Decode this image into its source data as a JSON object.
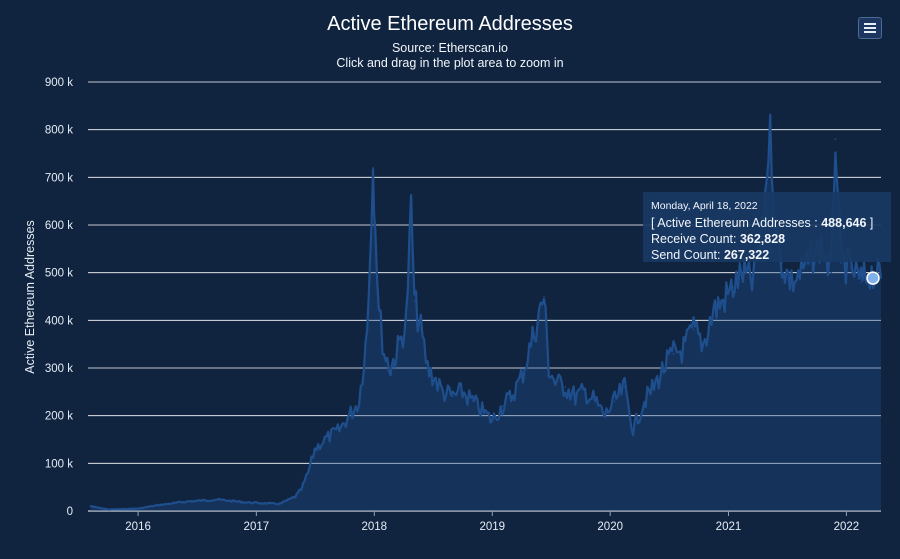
{
  "header": {
    "title": "Active Ethereum Addresses",
    "source": "Source: Etherscan.io",
    "hint": "Click and drag in the plot area to zoom in",
    "menu_icon": "hamburger-menu-icon"
  },
  "colors": {
    "background": "#102440",
    "series": "#1f4e8c",
    "gridline": "#ffffff",
    "marker": "#7fb2ec"
  },
  "tooltip": {
    "date": "Monday, April 18, 2022",
    "series_open": "[ Active Ethereum Addresses : ",
    "series_value": "488,646",
    "series_close": " ]",
    "receive_label": "Receive Count: ",
    "receive_value": "362,828",
    "send_label": "Send Count: ",
    "send_value": "267,322"
  },
  "chart_data": {
    "type": "area",
    "title": "Active Ethereum Addresses",
    "subtitle": "Source: Etherscan.io",
    "xlabel": "",
    "ylabel": "Active Ethereum Addresses",
    "y_ticks": [
      "0",
      "100 k",
      "200 k",
      "300 k",
      "400 k",
      "500 k",
      "600 k",
      "700 k",
      "800 k",
      "900 k"
    ],
    "x_ticks": [
      "2016",
      "2017",
      "2018",
      "2019",
      "2020",
      "2021",
      "2022"
    ],
    "ylim": [
      0,
      900000
    ],
    "xlim": [
      "2015-07-30",
      "2022-04-18"
    ],
    "grid": "horizontal",
    "legend": "none",
    "series": [
      {
        "x": [
          "2015-08-07",
          "2015-10-01",
          "2016-01-01",
          "2016-03-01",
          "2016-06-01",
          "2016-09-01",
          "2016-12-01",
          "2017-02-01",
          "2017-03-15",
          "2017-05-01",
          "2017-05-20",
          "2017-06-10",
          "2017-07-01",
          "2017-08-01",
          "2017-09-15",
          "2017-10-15",
          "2017-11-15",
          "2017-12-10",
          "2017-12-28",
          "2018-01-04",
          "2018-01-15",
          "2018-02-01",
          "2018-02-20",
          "2018-03-15",
          "2018-04-10",
          "2018-04-25",
          "2018-05-05",
          "2018-05-25",
          "2018-06-15",
          "2018-07-05",
          "2018-08-01",
          "2018-09-01",
          "2018-10-01",
          "2018-11-01",
          "2018-12-01",
          "2019-01-01",
          "2019-02-01",
          "2019-03-01",
          "2019-04-01",
          "2019-05-01",
          "2019-06-10",
          "2019-06-25",
          "2019-07-15",
          "2019-08-15",
          "2019-09-15",
          "2019-10-15",
          "2019-11-15",
          "2019-12-15",
          "2020-01-15",
          "2020-02-15",
          "2020-03-12",
          "2020-04-15",
          "2020-05-15",
          "2020-06-15",
          "2020-07-15",
          "2020-08-15",
          "2020-09-15",
          "2020-10-15",
          "2020-11-15",
          "2020-12-15",
          "2021-01-15",
          "2021-02-15",
          "2021-03-15",
          "2021-04-15",
          "2021-05-10",
          "2021-05-25",
          "2021-06-15",
          "2021-07-15",
          "2021-08-15",
          "2021-09-15",
          "2021-10-15",
          "2021-11-15",
          "2021-11-28",
          "2021-12-15",
          "2022-01-15",
          "2022-02-15",
          "2022-03-15",
          "2022-04-18"
        ],
        "values": [
          10000,
          3000,
          5000,
          12000,
          20000,
          24000,
          18000,
          16000,
          15000,
          30000,
          45000,
          80000,
          130000,
          150000,
          170000,
          200000,
          230000,
          380000,
          720000,
          600000,
          420000,
          330000,
          300000,
          340000,
          400000,
          640000,
          440000,
          380000,
          300000,
          280000,
          250000,
          240000,
          250000,
          230000,
          210000,
          190000,
          220000,
          240000,
          280000,
          350000,
          450000,
          300000,
          270000,
          260000,
          240000,
          250000,
          230000,
          200000,
          230000,
          260000,
          170000,
          230000,
          260000,
          300000,
          330000,
          340000,
          380000,
          350000,
          420000,
          440000,
          470000,
          500000,
          480000,
          580000,
          800000,
          600000,
          520000,
          480000,
          500000,
          530000,
          560000,
          500000,
          780000,
          520000,
          510000,
          480000,
          500000,
          488646
        ]
      }
    ]
  }
}
